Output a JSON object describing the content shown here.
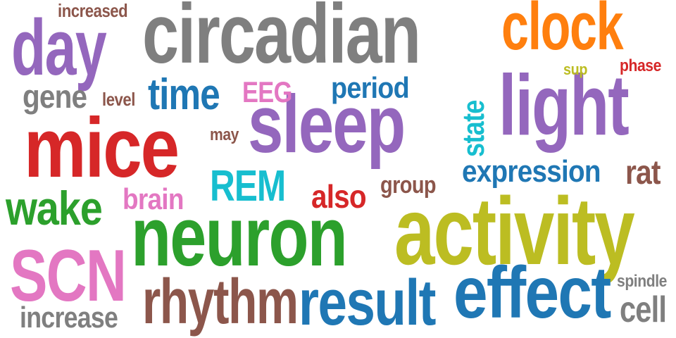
{
  "words": [
    {
      "text": "circadian",
      "color": "#7f7f7f"
    },
    {
      "text": "day",
      "color": "#9467bd"
    },
    {
      "text": "clock",
      "color": "#ff7f0e"
    },
    {
      "text": "increased",
      "color": "#8c564b"
    },
    {
      "text": "sleep",
      "color": "#9467bd"
    },
    {
      "text": "light",
      "color": "#9467bd"
    },
    {
      "text": "mice",
      "color": "#d62728"
    },
    {
      "text": "time",
      "color": "#1f77b4"
    },
    {
      "text": "gene",
      "color": "#7f7f7f"
    },
    {
      "text": "level",
      "color": "#8c564b"
    },
    {
      "text": "EEG",
      "color": "#e377c2"
    },
    {
      "text": "period",
      "color": "#1f77b4"
    },
    {
      "text": "sup",
      "color": "#bcbd22"
    },
    {
      "text": "phase",
      "color": "#d62728"
    },
    {
      "text": "state",
      "color": "#17becf"
    },
    {
      "text": "may",
      "color": "#8c564b"
    },
    {
      "text": "REM",
      "color": "#17becf"
    },
    {
      "text": "expression",
      "color": "#1f77b4"
    },
    {
      "text": "rat",
      "color": "#8c564b"
    },
    {
      "text": "wake",
      "color": "#2ca02c"
    },
    {
      "text": "brain",
      "color": "#e377c2"
    },
    {
      "text": "also",
      "color": "#d62728"
    },
    {
      "text": "group",
      "color": "#8c564b"
    },
    {
      "text": "neuron",
      "color": "#2ca02c"
    },
    {
      "text": "activity",
      "color": "#bcbd22"
    },
    {
      "text": "SCN",
      "color": "#e377c2"
    },
    {
      "text": "effect",
      "color": "#1f77b4"
    },
    {
      "text": "rhythm",
      "color": "#8c564b"
    },
    {
      "text": "result",
      "color": "#1f77b4"
    },
    {
      "text": "increase",
      "color": "#7f7f7f"
    },
    {
      "text": "spindle",
      "color": "#7f7f7f"
    },
    {
      "text": "cell",
      "color": "#7f7f7f"
    }
  ]
}
